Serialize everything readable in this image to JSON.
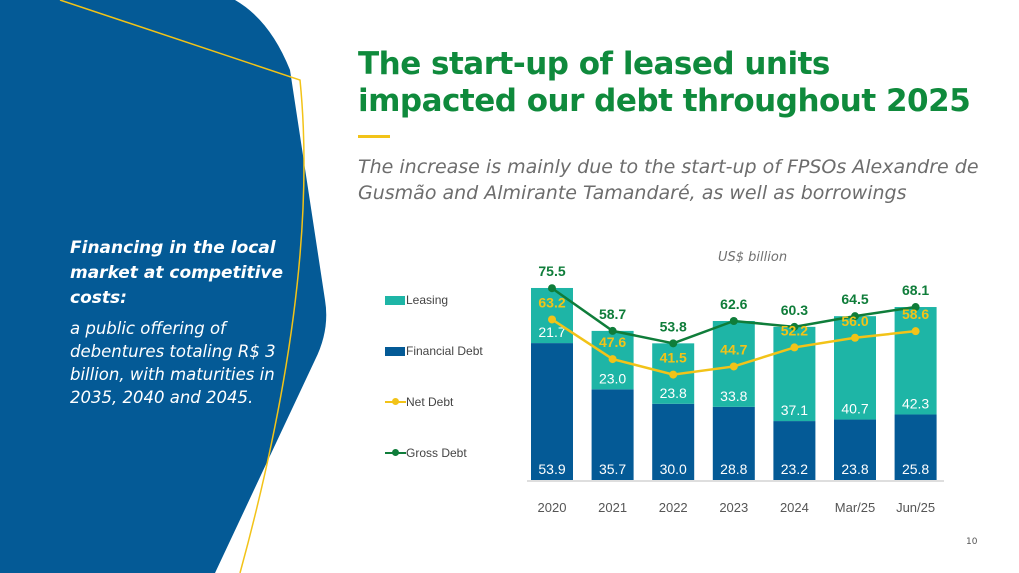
{
  "title": "The start-up of leased units impacted our debt throughout 2025",
  "subtitle": "The increase is mainly due to the start-up of FPSOs Alexandre de Gusmão and Almirante Tamandaré, as well as borrowings",
  "sidebar": {
    "heading": "Financing in the local market at competitive costs:",
    "body": "a public offering of debentures totaling R$ 3 billion, with maturities in 2035, 2040 and 2045."
  },
  "page_number": "10",
  "colors": {
    "navy": "#045a96",
    "green_title": "#0f8a3c",
    "leasing": "#1eb5a6",
    "financial_debt": "#045a96",
    "net_debt": "#f2c318",
    "gross_debt": "#0f7d3a"
  },
  "chart_data": {
    "type": "bar",
    "stacked": true,
    "unit_label": "US$ billion",
    "categories": [
      "2020",
      "2021",
      "2022",
      "2023",
      "2024",
      "Mar/25",
      "Jun/25"
    ],
    "series": [
      {
        "name": "Financial Debt",
        "kind": "bar",
        "color": "#045a96",
        "values": [
          53.9,
          35.7,
          30.0,
          28.8,
          23.2,
          23.8,
          25.8
        ]
      },
      {
        "name": "Leasing",
        "kind": "bar",
        "color": "#1eb5a6",
        "values": [
          21.7,
          23.0,
          23.8,
          33.8,
          37.1,
          40.7,
          42.3
        ]
      },
      {
        "name": "Net Debt",
        "kind": "line",
        "color": "#f2c318",
        "values": [
          63.2,
          47.6,
          41.5,
          44.7,
          52.2,
          56.0,
          58.6
        ]
      },
      {
        "name": "Gross Debt",
        "kind": "line",
        "color": "#0f7d3a",
        "values": [
          75.5,
          58.7,
          53.8,
          62.6,
          60.3,
          64.5,
          68.1
        ]
      }
    ],
    "legend": [
      "Leasing",
      "Financial Debt",
      "Net Debt",
      "Gross Debt"
    ],
    "legend_position": "left"
  }
}
